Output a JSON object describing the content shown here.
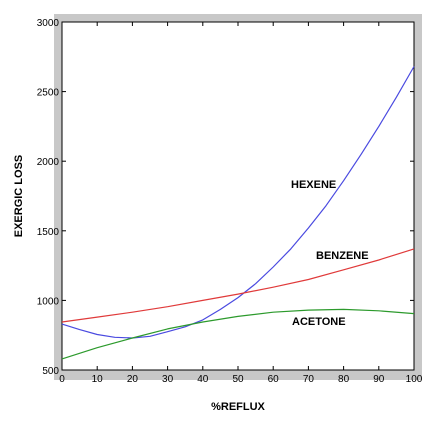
{
  "chart_data": {
    "type": "line",
    "title": "",
    "xlabel": "%REFLUX",
    "ylabel": "EXERGIC LOSS",
    "xlim": [
      0,
      100
    ],
    "ylim": [
      500,
      3000
    ],
    "xticks": [
      0,
      10,
      20,
      30,
      40,
      50,
      60,
      70,
      80,
      90,
      100
    ],
    "yticks": [
      500,
      1000,
      1500,
      2000,
      2500,
      3000
    ],
    "grid": false,
    "legend": "none",
    "colors": {
      "hexene": "#4a4ae0",
      "benzene": "#e03a3a",
      "acetone": "#2c9a2c",
      "frame_outer": "#c8c8c8"
    },
    "series": [
      {
        "name": "HEXENE",
        "color": "#4a4ae0",
        "x": [
          0,
          5,
          10,
          15,
          20,
          25,
          30,
          35,
          40,
          45,
          50,
          55,
          60,
          65,
          70,
          75,
          80,
          85,
          90,
          95,
          100
        ],
        "y": [
          830,
          790,
          755,
          735,
          730,
          742,
          775,
          810,
          860,
          935,
          1020,
          1120,
          1240,
          1370,
          1520,
          1680,
          1860,
          2050,
          2250,
          2460,
          2680
        ]
      },
      {
        "name": "BENZENE",
        "color": "#e03a3a",
        "x": [
          0,
          10,
          20,
          30,
          40,
          50,
          60,
          70,
          80,
          90,
          100
        ],
        "y": [
          845,
          880,
          915,
          955,
          1000,
          1045,
          1095,
          1150,
          1220,
          1290,
          1370
        ]
      },
      {
        "name": "ACETONE",
        "color": "#2c9a2c",
        "x": [
          0,
          10,
          20,
          30,
          40,
          50,
          60,
          70,
          80,
          90,
          100
        ],
        "y": [
          580,
          660,
          730,
          795,
          845,
          885,
          915,
          930,
          935,
          925,
          905
        ]
      }
    ]
  }
}
